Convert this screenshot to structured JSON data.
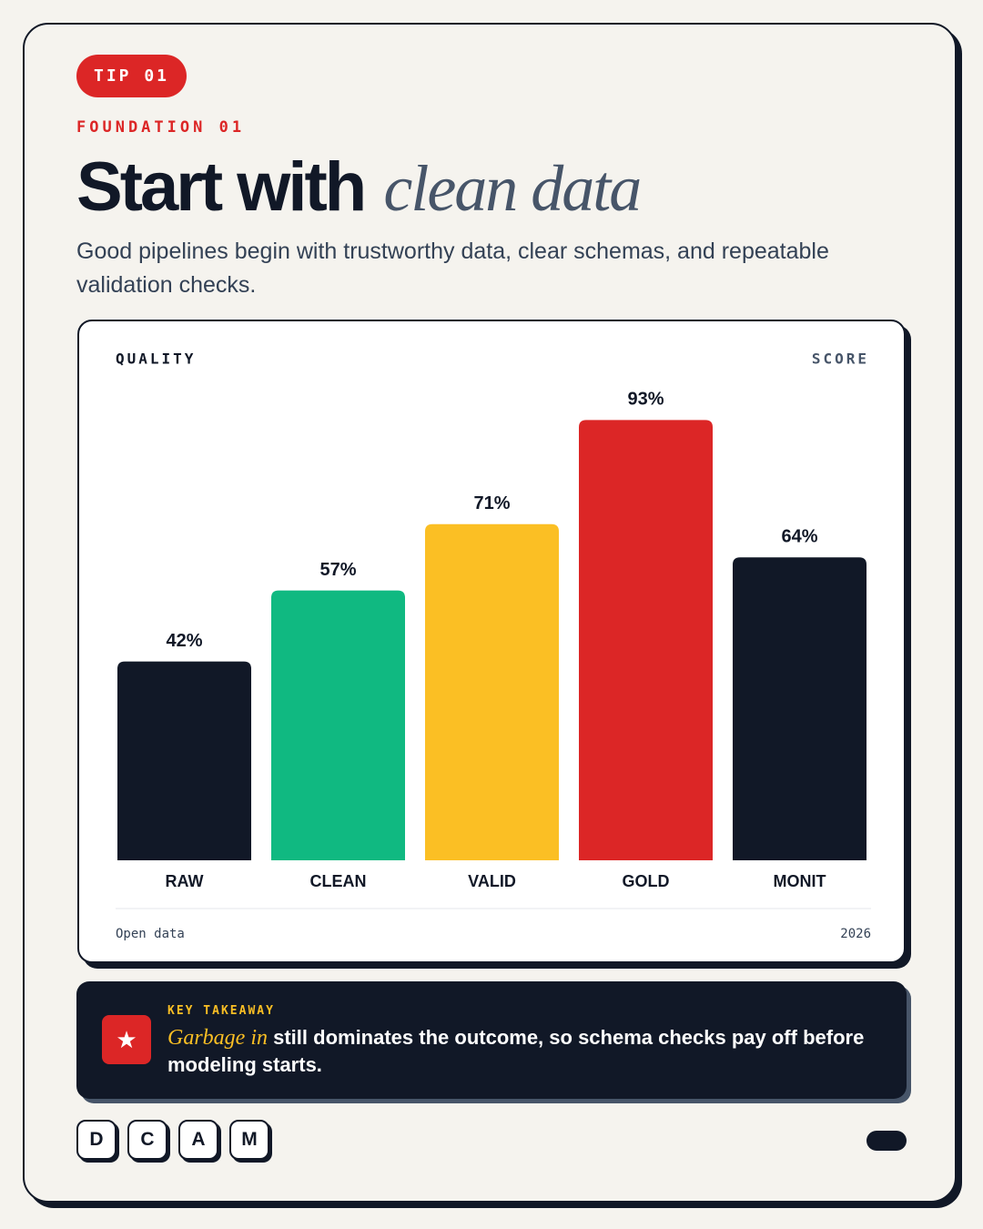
{
  "badge": "TIP 01",
  "kicker": "FOUNDATION 01",
  "headline": {
    "plain": "Start with",
    "italic": "clean data"
  },
  "subtitle": "Good pipelines begin with trustworthy data, clear schemas, and repeatable validation checks.",
  "chart_data": {
    "type": "bar",
    "x_label": "QUALITY",
    "y_label": "SCORE",
    "categories": [
      "RAW",
      "CLEAN",
      "VALID",
      "GOLD",
      "MONIT"
    ],
    "values": [
      42,
      57,
      71,
      93,
      64
    ],
    "value_labels": [
      "42%",
      "57%",
      "71%",
      "93%",
      "64%"
    ],
    "colors": [
      "#111827",
      "#10b981",
      "#fbbf24",
      "#dc2626",
      "#111827"
    ],
    "source": "Open data",
    "year": "2026"
  },
  "takeaway": {
    "label": "KEY TAKEAWAY",
    "emphasis": "Garbage in",
    "text": "still dominates the outcome, so schema checks pay off before modeling starts."
  },
  "footer": {
    "letters": [
      "D",
      "C",
      "A",
      "M"
    ]
  }
}
